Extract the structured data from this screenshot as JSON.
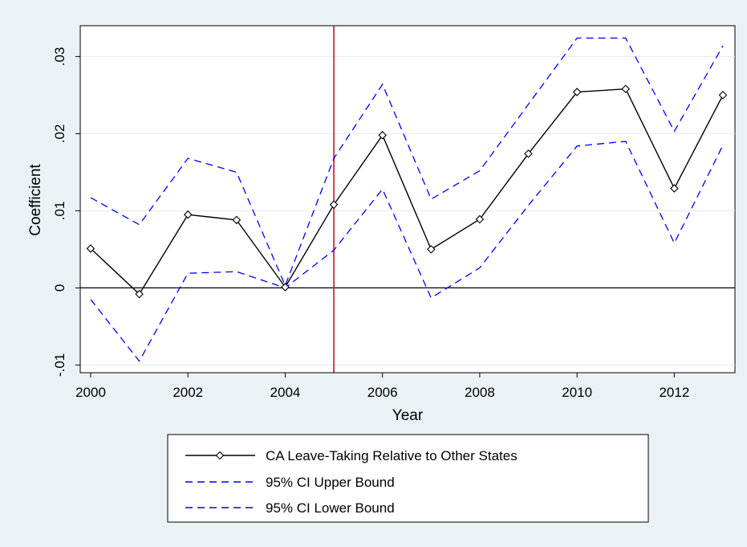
{
  "chart_data": {
    "type": "line",
    "xlabel": "Year",
    "ylabel": "Coefficient",
    "xlim": [
      2000,
      2013
    ],
    "ylim": [
      -0.011,
      0.034
    ],
    "x_ticks": [
      2000,
      2002,
      2004,
      2006,
      2008,
      2010,
      2012
    ],
    "x_tick_labels": [
      "2000",
      "2002",
      "2004",
      "2006",
      "2008",
      "2010",
      "2012"
    ],
    "y_ticks": [
      -0.01,
      0,
      0.01,
      0.02,
      0.03
    ],
    "y_tick_labels": [
      "-.01",
      "0",
      ".01",
      ".02",
      ".03"
    ],
    "x": [
      2000,
      2001,
      2002,
      2003,
      2004,
      2005,
      2006,
      2007,
      2008,
      2009,
      2010,
      2011,
      2012,
      2013
    ],
    "series": [
      {
        "name": "CA Leave-Taking Relative to Other States",
        "style": "solid-diamond",
        "color": "#000000",
        "values": [
          0.0051,
          -0.0008,
          0.0095,
          0.0088,
          0.0001,
          0.0108,
          0.0198,
          0.005,
          0.0089,
          0.0174,
          0.0254,
          0.0258,
          0.0129,
          0.025
        ]
      },
      {
        "name": "95% CI Upper Bound",
        "style": "dashed",
        "color": "#0000ff",
        "values": [
          0.0117,
          0.0082,
          0.0168,
          0.015,
          0.0003,
          0.0168,
          0.0264,
          0.0115,
          0.0152,
          0.0238,
          0.0324,
          0.0324,
          0.0203,
          0.0314
        ]
      },
      {
        "name": "95% CI Lower Bound",
        "style": "dashed",
        "color": "#0000ff",
        "values": [
          -0.0015,
          -0.0095,
          0.0019,
          0.0021,
          0.0,
          0.0049,
          0.0128,
          -0.0013,
          0.0026,
          0.0107,
          0.0184,
          0.019,
          0.0058,
          0.0185
        ]
      }
    ],
    "reference_lines": {
      "vertical": {
        "x": 2005,
        "color": "#c8102e"
      },
      "horizontal": {
        "y": 0,
        "color": "#000000"
      }
    },
    "grid": "horizontal",
    "legend_position": "bottom"
  }
}
